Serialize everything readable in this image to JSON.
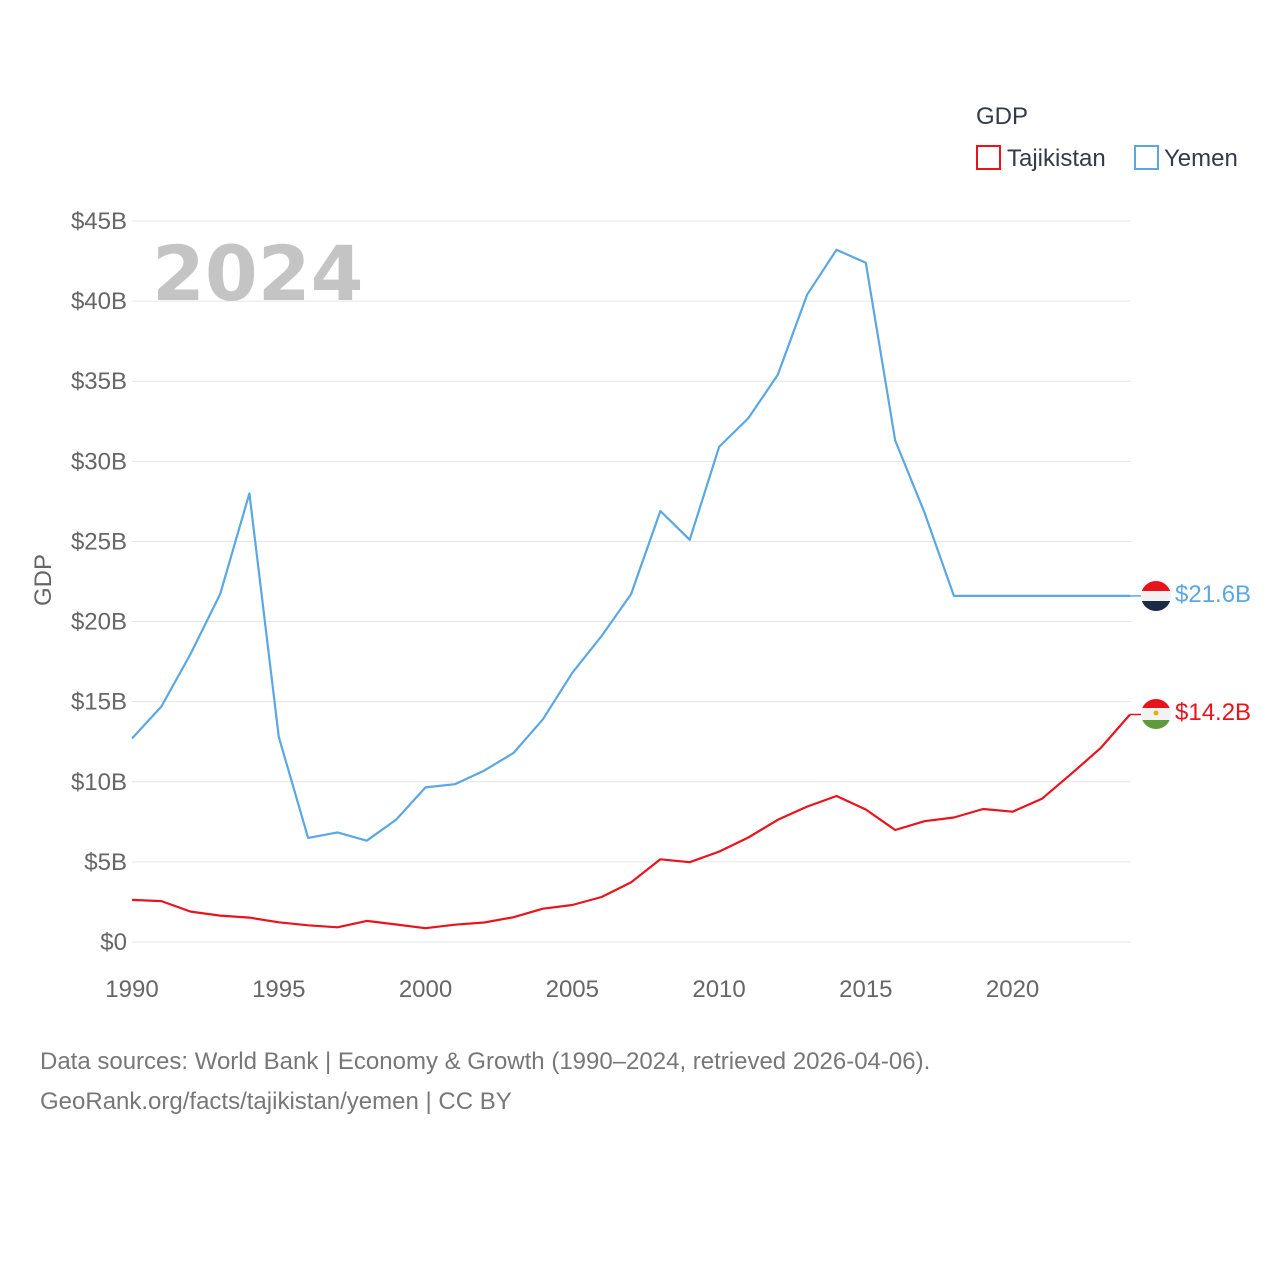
{
  "chart_data": {
    "type": "line",
    "title": "",
    "highlight_year": "2024",
    "ylabel": "GDP",
    "xlabel": "",
    "legend_title": "GDP",
    "legend_position": "top-right",
    "xlim": [
      1990,
      2024
    ],
    "ylim": [
      0,
      45
    ],
    "x_ticks": [
      1990,
      1995,
      2000,
      2005,
      2010,
      2015,
      2020
    ],
    "y_ticks": [
      {
        "value": 0,
        "label": "$0"
      },
      {
        "value": 5,
        "label": "$5B"
      },
      {
        "value": 10,
        "label": "$10B"
      },
      {
        "value": 15,
        "label": "$15B"
      },
      {
        "value": 20,
        "label": "$20B"
      },
      {
        "value": 25,
        "label": "$25B"
      },
      {
        "value": 30,
        "label": "$30B"
      },
      {
        "value": 35,
        "label": "$35B"
      },
      {
        "value": 40,
        "label": "$40B"
      },
      {
        "value": 45,
        "label": "$45B"
      }
    ],
    "x": [
      1990,
      1991,
      1992,
      1993,
      1994,
      1995,
      1996,
      1997,
      1998,
      1999,
      2000,
      2001,
      2002,
      2003,
      2004,
      2005,
      2006,
      2007,
      2008,
      2009,
      2010,
      2011,
      2012,
      2013,
      2014,
      2015,
      2016,
      2017,
      2018,
      2019,
      2020,
      2021,
      2022,
      2023,
      2024
    ],
    "series": [
      {
        "name": "Tajikistan",
        "color": "#e8141c",
        "end_label": "$14.2B",
        "flag": "tajikistan-flag",
        "values": [
          2.63,
          2.55,
          1.9,
          1.65,
          1.52,
          1.23,
          1.04,
          0.92,
          1.32,
          1.09,
          0.86,
          1.08,
          1.22,
          1.55,
          2.08,
          2.31,
          2.81,
          3.72,
          5.16,
          4.98,
          5.64,
          6.52,
          7.63,
          8.45,
          9.11,
          8.27,
          6.99,
          7.54,
          7.77,
          8.3,
          8.13,
          8.94,
          10.5,
          12.1,
          14.2
        ]
      },
      {
        "name": "Yemen",
        "color": "#5ba7e3",
        "end_label": "$21.6B",
        "flag": "yemen-flag",
        "values": [
          12.7,
          14.7,
          18.0,
          21.7,
          28.0,
          12.8,
          6.5,
          6.84,
          6.32,
          7.64,
          9.65,
          9.85,
          10.7,
          11.8,
          13.9,
          16.8,
          19.1,
          21.7,
          26.9,
          25.1,
          30.9,
          32.7,
          35.4,
          40.4,
          43.2,
          42.4,
          31.3,
          26.8,
          21.6,
          21.6,
          21.6,
          21.6,
          21.6,
          21.6,
          21.6
        ]
      }
    ]
  },
  "source": {
    "line1": "Data sources: World Bank | Economy & Growth (1990–2024, retrieved 2026-04-06).",
    "line2": "GeoRank.org/facts/tajikistan/yemen | CC BY"
  }
}
